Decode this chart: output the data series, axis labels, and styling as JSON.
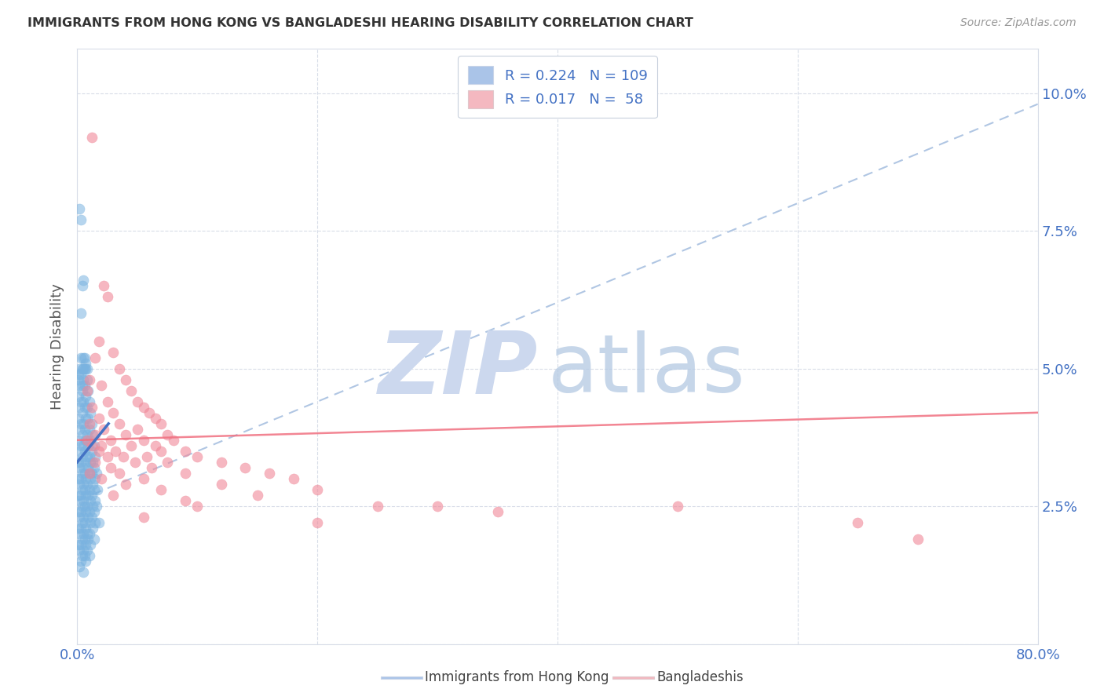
{
  "title": "IMMIGRANTS FROM HONG KONG VS BANGLADESHI HEARING DISABILITY CORRELATION CHART",
  "source": "Source: ZipAtlas.com",
  "ylabel": "Hearing Disability",
  "xlim": [
    0.0,
    0.8
  ],
  "ylim": [
    0.0,
    0.108
  ],
  "ytick_vals": [
    0.0,
    0.025,
    0.05,
    0.075,
    0.1
  ],
  "ytick_labels": [
    "",
    "2.5%",
    "5.0%",
    "7.5%",
    "10.0%"
  ],
  "xtick_vals": [
    0.0,
    0.2,
    0.4,
    0.6,
    0.8
  ],
  "xtick_labels_show": [
    "0.0%",
    "",
    "",
    "",
    "80.0%"
  ],
  "hk_color": "#7ab3e0",
  "bd_color": "#f08898",
  "hk_trend_color": "#4472c4",
  "hk_dash_color": "#a8c0e0",
  "bd_trend_color": "#f07080",
  "grid_color": "#d8dde8",
  "legend_patch_hk": "#aac4e8",
  "legend_patch_bd": "#f4b8c0",
  "legend_r_color": "#4472c4",
  "legend_n_color": "#4472c4",
  "legend_label_color": "#333333",
  "background_color": "#ffffff",
  "title_color": "#333333",
  "source_color": "#999999",
  "ylabel_color": "#555555",
  "right_axis_color": "#4472c4",
  "watermark_zip_color": "#ccd8ee",
  "watermark_atlas_color": "#b8cce4",
  "hk_points": [
    [
      0.002,
      0.079
    ],
    [
      0.003,
      0.077
    ],
    [
      0.005,
      0.066
    ],
    [
      0.004,
      0.065
    ],
    [
      0.003,
      0.06
    ],
    [
      0.005,
      0.052
    ],
    [
      0.007,
      0.051
    ],
    [
      0.006,
      0.05
    ],
    [
      0.008,
      0.05
    ],
    [
      0.001,
      0.048
    ],
    [
      0.004,
      0.047
    ],
    [
      0.003,
      0.052
    ],
    [
      0.006,
      0.052
    ],
    [
      0.005,
      0.05
    ],
    [
      0.002,
      0.05
    ],
    [
      0.007,
      0.05
    ],
    [
      0.004,
      0.05
    ],
    [
      0.001,
      0.049
    ],
    [
      0.003,
      0.049
    ],
    [
      0.005,
      0.048
    ],
    [
      0.008,
      0.048
    ],
    [
      0.002,
      0.047
    ],
    [
      0.006,
      0.047
    ],
    [
      0.004,
      0.046
    ],
    [
      0.009,
      0.046
    ],
    [
      0.001,
      0.045
    ],
    [
      0.007,
      0.045
    ],
    [
      0.003,
      0.044
    ],
    [
      0.005,
      0.044
    ],
    [
      0.01,
      0.044
    ],
    [
      0.002,
      0.043
    ],
    [
      0.006,
      0.043
    ],
    [
      0.008,
      0.043
    ],
    [
      0.004,
      0.042
    ],
    [
      0.011,
      0.042
    ],
    [
      0.001,
      0.041
    ],
    [
      0.007,
      0.041
    ],
    [
      0.009,
      0.041
    ],
    [
      0.003,
      0.04
    ],
    [
      0.005,
      0.04
    ],
    [
      0.012,
      0.04
    ],
    [
      0.002,
      0.039
    ],
    [
      0.006,
      0.039
    ],
    [
      0.01,
      0.039
    ],
    [
      0.004,
      0.038
    ],
    [
      0.008,
      0.038
    ],
    [
      0.013,
      0.038
    ],
    [
      0.001,
      0.037
    ],
    [
      0.007,
      0.037
    ],
    [
      0.011,
      0.037
    ],
    [
      0.003,
      0.036
    ],
    [
      0.005,
      0.036
    ],
    [
      0.009,
      0.036
    ],
    [
      0.014,
      0.036
    ],
    [
      0.002,
      0.035
    ],
    [
      0.006,
      0.035
    ],
    [
      0.012,
      0.035
    ],
    [
      0.004,
      0.034
    ],
    [
      0.008,
      0.034
    ],
    [
      0.01,
      0.034
    ],
    [
      0.015,
      0.034
    ],
    [
      0.001,
      0.033
    ],
    [
      0.003,
      0.033
    ],
    [
      0.007,
      0.033
    ],
    [
      0.011,
      0.033
    ],
    [
      0.013,
      0.033
    ],
    [
      0.002,
      0.032
    ],
    [
      0.005,
      0.032
    ],
    [
      0.009,
      0.032
    ],
    [
      0.014,
      0.032
    ],
    [
      0.004,
      0.031
    ],
    [
      0.006,
      0.031
    ],
    [
      0.01,
      0.031
    ],
    [
      0.012,
      0.031
    ],
    [
      0.016,
      0.031
    ],
    [
      0.001,
      0.03
    ],
    [
      0.003,
      0.03
    ],
    [
      0.007,
      0.03
    ],
    [
      0.011,
      0.03
    ],
    [
      0.015,
      0.03
    ],
    [
      0.002,
      0.029
    ],
    [
      0.005,
      0.029
    ],
    [
      0.008,
      0.029
    ],
    [
      0.013,
      0.029
    ],
    [
      0.004,
      0.028
    ],
    [
      0.006,
      0.028
    ],
    [
      0.01,
      0.028
    ],
    [
      0.014,
      0.028
    ],
    [
      0.017,
      0.028
    ],
    [
      0.001,
      0.027
    ],
    [
      0.003,
      0.027
    ],
    [
      0.007,
      0.027
    ],
    [
      0.009,
      0.027
    ],
    [
      0.012,
      0.027
    ],
    [
      0.002,
      0.026
    ],
    [
      0.005,
      0.026
    ],
    [
      0.011,
      0.026
    ],
    [
      0.015,
      0.026
    ],
    [
      0.004,
      0.025
    ],
    [
      0.006,
      0.025
    ],
    [
      0.008,
      0.025
    ],
    [
      0.013,
      0.025
    ],
    [
      0.016,
      0.025
    ],
    [
      0.001,
      0.024
    ],
    [
      0.003,
      0.024
    ],
    [
      0.007,
      0.024
    ],
    [
      0.01,
      0.024
    ],
    [
      0.014,
      0.024
    ],
    [
      0.002,
      0.023
    ],
    [
      0.005,
      0.023
    ],
    [
      0.009,
      0.023
    ],
    [
      0.012,
      0.023
    ],
    [
      0.004,
      0.022
    ],
    [
      0.006,
      0.022
    ],
    [
      0.011,
      0.022
    ],
    [
      0.015,
      0.022
    ],
    [
      0.018,
      0.022
    ],
    [
      0.001,
      0.021
    ],
    [
      0.003,
      0.021
    ],
    [
      0.007,
      0.021
    ],
    [
      0.013,
      0.021
    ],
    [
      0.002,
      0.02
    ],
    [
      0.005,
      0.02
    ],
    [
      0.008,
      0.02
    ],
    [
      0.01,
      0.02
    ],
    [
      0.004,
      0.019
    ],
    [
      0.006,
      0.019
    ],
    [
      0.009,
      0.019
    ],
    [
      0.014,
      0.019
    ],
    [
      0.001,
      0.018
    ],
    [
      0.003,
      0.018
    ],
    [
      0.007,
      0.018
    ],
    [
      0.011,
      0.018
    ],
    [
      0.002,
      0.017
    ],
    [
      0.005,
      0.017
    ],
    [
      0.008,
      0.017
    ],
    [
      0.004,
      0.016
    ],
    [
      0.006,
      0.016
    ],
    [
      0.01,
      0.016
    ],
    [
      0.003,
      0.015
    ],
    [
      0.007,
      0.015
    ],
    [
      0.002,
      0.014
    ],
    [
      0.005,
      0.013
    ]
  ],
  "bd_points": [
    [
      0.012,
      0.092
    ],
    [
      0.022,
      0.065
    ],
    [
      0.025,
      0.063
    ],
    [
      0.018,
      0.055
    ],
    [
      0.03,
      0.053
    ],
    [
      0.015,
      0.052
    ],
    [
      0.035,
      0.05
    ],
    [
      0.01,
      0.048
    ],
    [
      0.04,
      0.048
    ],
    [
      0.02,
      0.047
    ],
    [
      0.008,
      0.046
    ],
    [
      0.045,
      0.046
    ],
    [
      0.025,
      0.044
    ],
    [
      0.05,
      0.044
    ],
    [
      0.012,
      0.043
    ],
    [
      0.055,
      0.043
    ],
    [
      0.03,
      0.042
    ],
    [
      0.06,
      0.042
    ],
    [
      0.018,
      0.041
    ],
    [
      0.065,
      0.041
    ],
    [
      0.01,
      0.04
    ],
    [
      0.035,
      0.04
    ],
    [
      0.07,
      0.04
    ],
    [
      0.022,
      0.039
    ],
    [
      0.05,
      0.039
    ],
    [
      0.015,
      0.038
    ],
    [
      0.04,
      0.038
    ],
    [
      0.075,
      0.038
    ],
    [
      0.028,
      0.037
    ],
    [
      0.055,
      0.037
    ],
    [
      0.008,
      0.037
    ],
    [
      0.08,
      0.037
    ],
    [
      0.02,
      0.036
    ],
    [
      0.045,
      0.036
    ],
    [
      0.012,
      0.036
    ],
    [
      0.065,
      0.036
    ],
    [
      0.032,
      0.035
    ],
    [
      0.07,
      0.035
    ],
    [
      0.018,
      0.035
    ],
    [
      0.09,
      0.035
    ],
    [
      0.025,
      0.034
    ],
    [
      0.058,
      0.034
    ],
    [
      0.038,
      0.034
    ],
    [
      0.1,
      0.034
    ],
    [
      0.015,
      0.033
    ],
    [
      0.048,
      0.033
    ],
    [
      0.075,
      0.033
    ],
    [
      0.12,
      0.033
    ],
    [
      0.028,
      0.032
    ],
    [
      0.062,
      0.032
    ],
    [
      0.14,
      0.032
    ],
    [
      0.01,
      0.031
    ],
    [
      0.035,
      0.031
    ],
    [
      0.09,
      0.031
    ],
    [
      0.16,
      0.031
    ],
    [
      0.02,
      0.03
    ],
    [
      0.055,
      0.03
    ],
    [
      0.18,
      0.03
    ],
    [
      0.04,
      0.029
    ],
    [
      0.12,
      0.029
    ],
    [
      0.07,
      0.028
    ],
    [
      0.2,
      0.028
    ],
    [
      0.03,
      0.027
    ],
    [
      0.15,
      0.027
    ],
    [
      0.09,
      0.026
    ],
    [
      0.25,
      0.025
    ],
    [
      0.1,
      0.025
    ],
    [
      0.3,
      0.025
    ],
    [
      0.35,
      0.024
    ],
    [
      0.055,
      0.023
    ],
    [
      0.2,
      0.022
    ],
    [
      0.5,
      0.025
    ],
    [
      0.65,
      0.022
    ],
    [
      0.7,
      0.019
    ]
  ],
  "hk_trendline": [
    [
      0.0,
      0.033
    ],
    [
      0.026,
      0.04
    ]
  ],
  "hk_dash_trendline": [
    [
      0.0,
      0.026
    ],
    [
      0.8,
      0.098
    ]
  ],
  "bd_trendline": [
    [
      0.0,
      0.037
    ],
    [
      0.8,
      0.042
    ]
  ]
}
